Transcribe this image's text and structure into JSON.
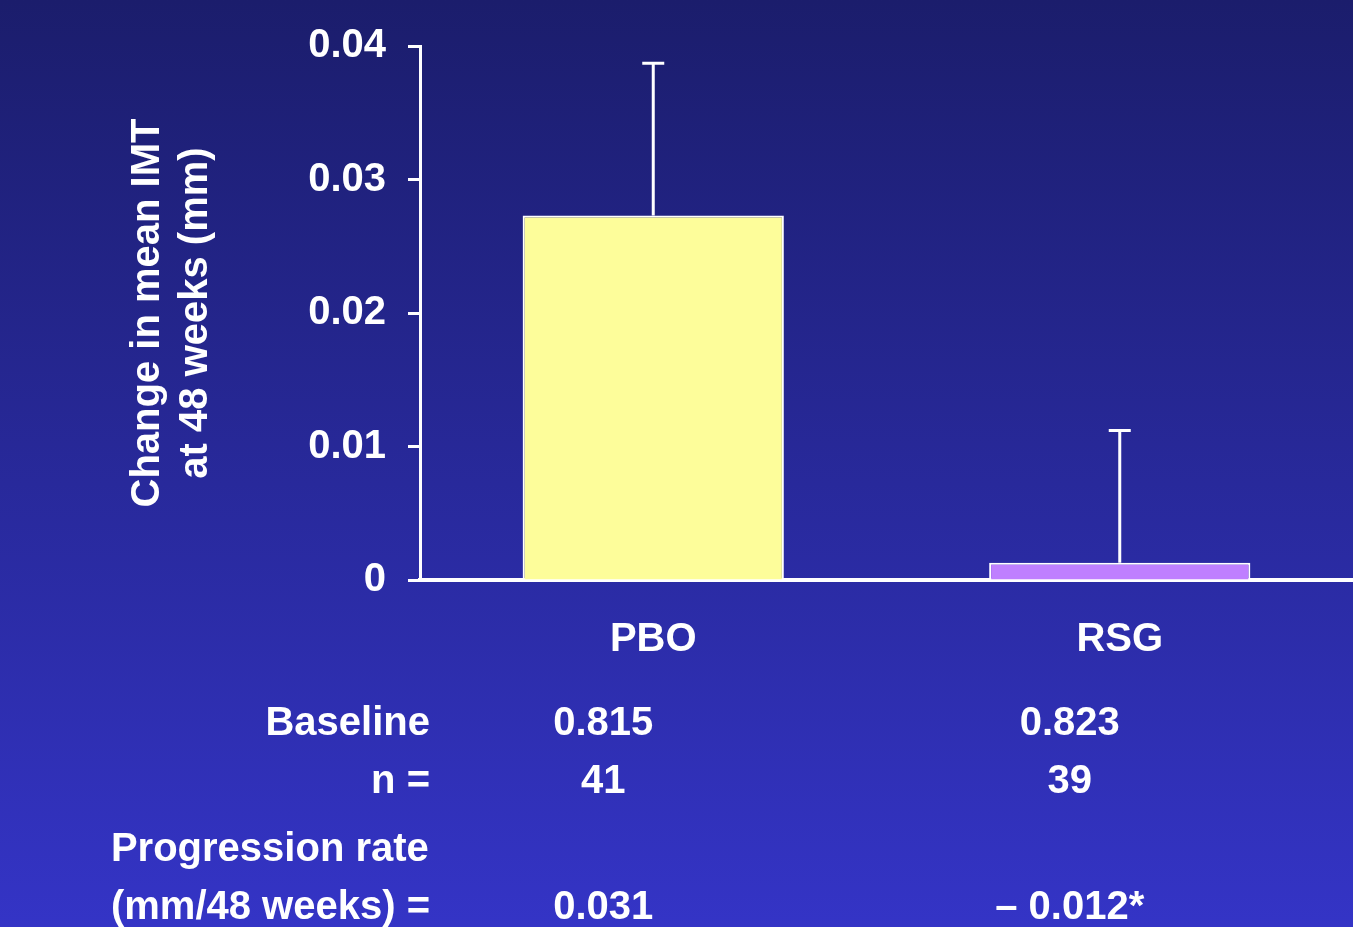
{
  "chart_data": {
    "type": "bar",
    "ylabel": "Change in mean IMT\nat 48 weeks (mm)",
    "categories": [
      "PBO",
      "RSG"
    ],
    "values": [
      0.0273,
      0.0013
    ],
    "colors": [
      "#fdfd9a",
      "#bf7fff"
    ],
    "errors": [
      [
        0.0273,
        0.0387
      ],
      [
        0.0013,
        0.0112
      ]
    ],
    "ylim": [
      0,
      0.04
    ],
    "yticks": [
      0,
      0.01,
      0.02,
      0.03,
      0.04
    ],
    "annotations": [
      "Baseline",
      "0.815",
      "0.823",
      "n =",
      "41",
      "39",
      "Progression rate\n(mm/48 weeks) =",
      "0.031",
      "– 0.012*"
    ]
  }
}
